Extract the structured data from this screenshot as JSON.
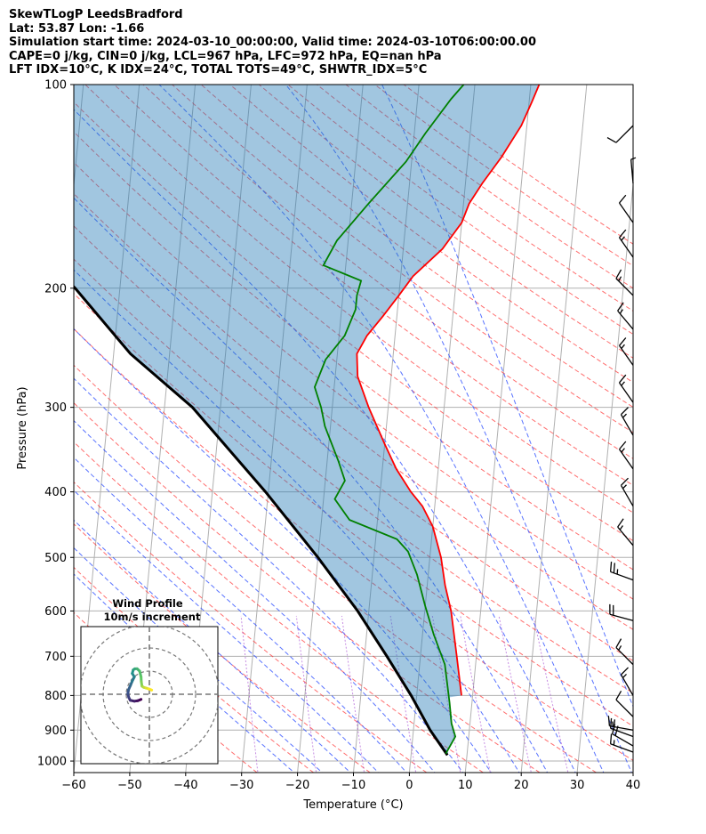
{
  "header": {
    "line1": "SkewTLogP LeedsBradford",
    "line2": "Lat: 53.87   Lon: -1.66",
    "line3": "Simulation start time: 2024-03-10_00:00:00, Valid time: 2024-03-10T06:00:00.00",
    "line4": "CAPE=0 j/kg, CIN=0 j/kg, LCL=967 hPa, LFC=972 hPa, EQ=nan hPa",
    "line5": "LFT IDX=10°C, K IDX=24°C, TOTAL TOTS=49°C, SHWTR_IDX=5°C"
  },
  "chart_data": {
    "type": "skewt",
    "xlabel": "Temperature (°C)",
    "ylabel": "Pressure (hPa)",
    "xlim": [
      -60,
      40
    ],
    "ylim": [
      1040,
      100
    ],
    "x_ticks": [
      "−60",
      "−50",
      "−40",
      "−30",
      "−20",
      "−10",
      "0",
      "10",
      "20",
      "30",
      "40"
    ],
    "y_ticks": [
      "1000",
      "900",
      "800",
      "700",
      "600",
      "500",
      "400",
      "300",
      "200",
      "100"
    ],
    "y_tick_values": [
      1000,
      900,
      800,
      700,
      600,
      500,
      400,
      300,
      200,
      100
    ],
    "grid": true,
    "series": [
      {
        "role": "temperature",
        "color": "#ff0000",
        "points": [
          [
            8,
            800
          ],
          [
            6.5,
            700
          ],
          [
            4.7,
            600
          ],
          [
            3.2,
            550
          ],
          [
            2,
            500
          ],
          [
            0,
            450
          ],
          [
            -2.2,
            420
          ],
          [
            -4.5,
            400
          ],
          [
            -7.5,
            370
          ],
          [
            -10,
            340
          ],
          [
            -13.5,
            300
          ],
          [
            -16,
            270
          ],
          [
            -16.5,
            250
          ],
          [
            -15,
            235
          ],
          [
            -12.5,
            220
          ],
          [
            -10,
            205
          ],
          [
            -7.8,
            192
          ],
          [
            -3,
            175
          ],
          [
            0,
            160
          ],
          [
            1,
            150
          ],
          [
            3,
            140
          ],
          [
            6,
            128
          ],
          [
            9,
            115
          ],
          [
            10.5,
            106
          ],
          [
            11.5,
            100
          ]
        ]
      },
      {
        "role": "dewpoint",
        "color": "#008000",
        "points": [
          [
            6.2,
            975
          ],
          [
            7.6,
            920
          ],
          [
            6.7,
            880
          ],
          [
            6,
            820
          ],
          [
            4.5,
            720
          ],
          [
            2,
            650
          ],
          [
            0,
            590
          ],
          [
            -2,
            530
          ],
          [
            -4,
            490
          ],
          [
            -6.2,
            470
          ],
          [
            -15,
            440
          ],
          [
            -18,
            410
          ],
          [
            -16.5,
            385
          ],
          [
            -18,
            360
          ],
          [
            -21,
            320
          ],
          [
            -22,
            300
          ],
          [
            -23.5,
            280
          ],
          [
            -22,
            255
          ],
          [
            -19,
            235
          ],
          [
            -17.5,
            215
          ],
          [
            -17.5,
            205
          ],
          [
            -17,
            195
          ],
          [
            -24,
            185
          ],
          [
            -22,
            170
          ],
          [
            -17,
            150
          ],
          [
            -11,
            130
          ],
          [
            -8,
            118
          ],
          [
            -4,
            105
          ],
          [
            -2,
            100
          ]
        ]
      },
      {
        "role": "parcel",
        "color": "#000000",
        "points": [
          [
            6.5,
            980
          ],
          [
            3,
            900
          ],
          [
            -1,
            800
          ],
          [
            -6,
            700
          ],
          [
            -12,
            600
          ],
          [
            -20,
            500
          ],
          [
            -30.5,
            400
          ],
          [
            -45,
            300
          ],
          [
            -57,
            250
          ],
          [
            -68,
            200
          ],
          [
            -84,
            150
          ],
          [
            -92,
            130
          ],
          [
            -100,
            110
          ],
          [
            -103,
            100
          ]
        ]
      }
    ],
    "cape_shading": {
      "color": "#1f77b4",
      "opacity": 0.42
    },
    "wind_barbs": [
      {
        "p": 970,
        "dir": 290,
        "spd": 15
      },
      {
        "p": 950,
        "dir": 300,
        "spd": 20
      },
      {
        "p": 920,
        "dir": 290,
        "spd": 20
      },
      {
        "p": 900,
        "dir": 280,
        "spd": 15
      },
      {
        "p": 860,
        "dir": 315,
        "spd": 10
      },
      {
        "p": 800,
        "dir": 330,
        "spd": 15
      },
      {
        "p": 720,
        "dir": 315,
        "spd": 15
      },
      {
        "p": 620,
        "dir": 285,
        "spd": 20
      },
      {
        "p": 540,
        "dir": 290,
        "spd": 25
      },
      {
        "p": 480,
        "dir": 320,
        "spd": 15
      },
      {
        "p": 420,
        "dir": 330,
        "spd": 15
      },
      {
        "p": 370,
        "dir": 325,
        "spd": 15
      },
      {
        "p": 330,
        "dir": 330,
        "spd": 15
      },
      {
        "p": 295,
        "dir": 325,
        "spd": 15
      },
      {
        "p": 260,
        "dir": 325,
        "spd": 15
      },
      {
        "p": 230,
        "dir": 320,
        "spd": 15
      },
      {
        "p": 205,
        "dir": 315,
        "spd": 15
      },
      {
        "p": 180,
        "dir": 325,
        "spd": 15
      },
      {
        "p": 160,
        "dir": 325,
        "spd": 10
      },
      {
        "p": 140,
        "dir": 355,
        "spd": 5
      },
      {
        "p": 115,
        "dir": 225,
        "spd": 10
      }
    ],
    "inset": {
      "title": "Wind Profile",
      "subtitle": "10m/s increment",
      "ring_spacing": 10,
      "hodograph_uv": [
        [
          1.0,
          1.8
        ],
        [
          -0.2,
          2.3
        ],
        [
          -1.5,
          2.7
        ],
        [
          -2.5,
          3.0
        ],
        [
          -3.2,
          3.5
        ],
        [
          -3.5,
          5.5
        ],
        [
          -3.6,
          7.5
        ],
        [
          -4.2,
          10.0
        ],
        [
          -5.3,
          11.0
        ],
        [
          -6.3,
          11.0
        ],
        [
          -7.0,
          10.5
        ],
        [
          -7.4,
          9.0
        ],
        [
          -6.5,
          7.5
        ],
        [
          -7.5,
          5.5
        ],
        [
          -8.2,
          3.8
        ],
        [
          -9.0,
          2.0
        ],
        [
          -9.3,
          0.2
        ],
        [
          -8.9,
          -1.4
        ],
        [
          -8.3,
          -2.6
        ],
        [
          -6.5,
          -3.0
        ],
        [
          -5.0,
          -2.8
        ],
        [
          -3.6,
          -2.2
        ]
      ],
      "colormap": "viridis"
    }
  }
}
